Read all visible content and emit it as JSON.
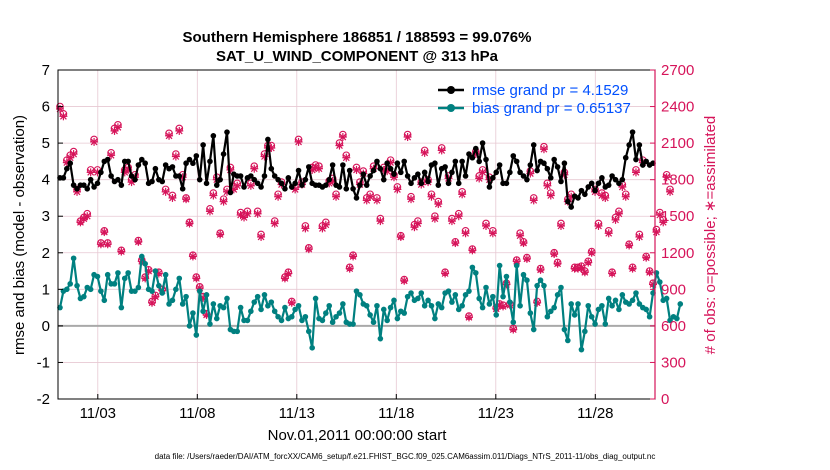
{
  "chart_data": {
    "type": "line",
    "title_line1": "Southern Hemisphere 186851 / 188593 = 99.076%",
    "title_line2": "SAT_U_WIND_COMPONENT @ 313 hPa",
    "xlabel": "Nov.01,2011 00:00:00 start",
    "ylabel_left": "rmse and bias (model - observation)",
    "ylabel_right": "# of obs: o=possible; ∗=assimilated",
    "footer": "data file: /Users/raeder/DAI/ATM_forcXX/CAM6_setup/f.e21.FHIST_BGC.f09_025.CAM6assim.011/Diags_NTrS_2011-11/obs_diag_output.nc",
    "xlim": [
      1.0,
      31.0
    ],
    "x_ticks": [
      3,
      8,
      13,
      18,
      23,
      28
    ],
    "x_tick_labels": [
      "11/03",
      "11/08",
      "11/13",
      "11/18",
      "11/23",
      "11/28"
    ],
    "ylim_left": [
      -2,
      7
    ],
    "y_ticks_left": [
      "-2",
      "-1",
      "0",
      "1",
      "2",
      "3",
      "4",
      "5",
      "6",
      "7"
    ],
    "ylim_right": [
      0,
      2700
    ],
    "y_ticks_right": [
      "0",
      "300",
      "600",
      "900",
      "1200",
      "1500",
      "1800",
      "2100",
      "2400",
      "2700"
    ],
    "zero_line": 0,
    "legend_position": "top-right",
    "colors": {
      "rmse": "#000000",
      "bias": "#008080",
      "obs": "#d6145a",
      "grid": "#e7c8d2",
      "right_axis": "#d6145a"
    },
    "series": [
      {
        "name": "rmse",
        "legend": "rmse grand pr = 4.1529",
        "values": [
          4.05,
          4.05,
          4.3,
          4.45,
          3.85,
          3.75,
          3.85,
          3.85,
          3.75,
          4.0,
          3.8,
          3.9,
          4.2,
          4.5,
          4.55,
          4.1,
          3.95,
          4.0,
          3.85,
          4.5,
          4.5,
          4.1,
          4.0,
          4.4,
          4.55,
          4.45,
          3.9,
          3.95,
          4.3,
          4.0,
          3.95,
          4.4,
          4.3,
          4.35,
          4.1,
          4.1,
          3.75,
          4.45,
          4.55,
          4.45,
          4.65,
          4.0,
          4.95,
          3.9,
          4.5,
          5.2,
          3.85,
          4.0,
          4.7,
          5.3,
          3.65,
          4.15,
          4.1,
          4.1,
          3.8,
          4.05,
          4.1,
          4.0,
          3.9,
          3.8,
          4.1,
          5.1,
          4.3,
          4.1,
          4.0,
          3.9,
          3.75,
          4.05,
          3.8,
          3.9,
          4.25,
          3.85,
          4.0,
          4.35,
          3.9,
          3.85,
          3.85,
          3.8,
          3.85,
          4.0,
          4.4,
          3.85,
          3.8,
          4.4,
          3.75,
          4.25,
          3.75,
          3.5,
          3.85,
          4.15,
          3.85,
          4.1,
          4.25,
          4.5,
          4.3,
          4.0,
          4.45,
          4.3,
          4.15,
          4.45,
          4.2,
          4.5,
          4.1,
          3.9,
          4.05,
          4.15,
          3.9,
          4.2,
          3.95,
          4.4,
          4.45,
          3.85,
          4.3,
          4.35,
          3.9,
          4.2,
          4.5,
          3.9,
          4.5,
          4.1,
          4.7,
          4.6,
          4.85,
          4.5,
          5.0,
          4.55,
          3.8,
          4.05,
          4.2,
          4.4,
          3.9,
          3.9,
          4.2,
          4.65,
          4.5,
          4.2,
          4.1,
          4.0,
          4.4,
          4.95,
          4.25,
          4.5,
          4.45,
          4.3,
          4.05,
          4.55,
          4.35,
          3.95,
          4.45,
          3.4,
          3.25,
          3.55,
          3.5,
          3.7,
          3.6,
          3.8,
          3.9,
          3.7,
          3.9,
          4.05,
          3.8,
          3.85,
          4.1,
          4.0,
          3.9,
          4.0,
          4.6,
          4.95,
          5.3,
          4.55,
          4.95,
          4.4,
          4.5,
          4.4,
          4.45
        ]
      },
      {
        "name": "bias",
        "legend": "bias grand pr = 0.65137",
        "values": [
          0.5,
          0.95,
          1.0,
          1.15,
          1.85,
          1.1,
          0.75,
          0.8,
          1.05,
          1.0,
          1.4,
          1.35,
          0.95,
          0.7,
          1.4,
          1.15,
          1.15,
          1.45,
          0.5,
          1.3,
          1.45,
          0.95,
          0.95,
          1.05,
          1.9,
          1.7,
          1.0,
          0.95,
          1.5,
          1.1,
          0.9,
          1.4,
          0.6,
          0.7,
          1.0,
          1.3,
          0.6,
          0.8,
          0.0,
          0.35,
          -0.25,
          0.95,
          0.4,
          0.85,
          0.05,
          0.6,
          0.2,
          0.55,
          0.5,
          0.75,
          -0.1,
          -0.15,
          -0.15,
          0.5,
          0.15,
          0.15,
          0.4,
          0.65,
          0.8,
          0.45,
          0.85,
          0.55,
          0.65,
          0.4,
          0.25,
          0.15,
          0.5,
          0.2,
          0.25,
          0.45,
          0.55,
          0.15,
          0.25,
          -0.15,
          -0.6,
          0.75,
          0.2,
          0.15,
          0.35,
          0.55,
          0.1,
          0.25,
          0.35,
          0.6,
          0.1,
          0.05,
          0.05,
          0.95,
          0.85,
          0.6,
          0.55,
          0.3,
          0.1,
          0.55,
          -0.35,
          0.45,
          0.15,
          0.5,
          0.7,
          0.2,
          0.4,
          0.35,
          0.8,
          0.9,
          0.7,
          0.75,
          0.9,
          0.55,
          0.7,
          0.55,
          0.2,
          0.6,
          0.5,
          0.9,
          0.95,
          0.65,
          0.85,
          0.45,
          0.55,
          0.85,
          0.95,
          1.6,
          1.45,
          0.75,
          0.5,
          1.05,
          0.6,
          0.8,
          0.3,
          1.65,
          0.8,
          1.35,
          0.65,
          0.1,
          1.65,
          0.55,
          1.4,
          1.25,
          0.35,
          -0.1,
          1.1,
          1.25,
          1.1,
          0.25,
          0.4,
          0.5,
          0.85,
          1.05,
          -0.1,
          -0.4,
          0.6,
          0.3,
          0.6,
          -0.65,
          -0.15,
          0.55,
          0.25,
          0.05,
          0.45,
          0.55,
          0.05,
          0.75,
          0.55,
          0.7,
          0.45,
          0.85,
          0.65,
          0.6,
          0.7,
          0.9,
          0.6,
          0.5,
          0.45,
          0.25,
          0.9,
          1.45,
          1.2,
          0.7,
          0.75,
          0.15,
          0.25,
          0.2,
          0.6
        ]
      },
      {
        "name": "obs_possible",
        "values": [
          2400,
          2340,
          1960,
          2000,
          2030,
          1720,
          1460,
          1490,
          1520,
          1880,
          2130,
          1880,
          1280,
          1380,
          1280,
          2020,
          2220,
          2250,
          1220,
          1880,
          1900,
          1800,
          1840,
          1300,
          1140,
          1000,
          1060,
          800,
          850,
          1040,
          900,
          1720,
          2180,
          1670,
          2010,
          2220,
          1840,
          1650,
          1450,
          1180,
          1000,
          920,
          840,
          700,
          1560,
          1690,
          1820,
          1360,
          1640,
          1720,
          1900,
          1740,
          1770,
          1530,
          1510,
          1540,
          1770,
          1910,
          1540,
          1350,
          2010,
          2080,
          2080,
          1460,
          1680,
          1780,
          1000,
          1040,
          800,
          1740,
          2130,
          1780,
          1420,
          1240,
          1900,
          1920,
          1910,
          1420,
          1450,
          1790,
          1810,
          1680,
          2100,
          2170,
          2000,
          1080,
          1180,
          1900,
          1780,
          1870,
          1650,
          1680,
          1910,
          1650,
          1480,
          1900,
          1890,
          1960,
          1840,
          1740,
          1340,
          980,
          2170,
          1660,
          1430,
          1460,
          1780,
          2040,
          1800,
          1680,
          1500,
          1620,
          2060,
          1040,
          1830,
          1480,
          1290,
          1520,
          1700,
          1380,
          680,
          1230,
          2030,
          1830,
          1880,
          1440,
          1820,
          1380,
          750,
          780,
          770,
          950,
          780,
          580,
          1140,
          1360,
          1290,
          1160,
          1870,
          1650,
          800,
          1070,
          2070,
          1770,
          1690,
          1200,
          1120,
          1440,
          1860,
          1640,
          1680,
          1080,
          1080,
          1090,
          1050,
          1130,
          1210,
          1720,
          1440,
          1690,
          1670,
          1380,
          1040,
          1490,
          1540,
          1760,
          1680,
          1270,
          1080,
          1880,
          1350,
          1960,
          1170,
          1050,
          950,
          1390,
          1530,
          1470,
          1840,
          1720
        ]
      },
      {
        "name": "obs_assimilated",
        "values": [
          2380,
          2320,
          1940,
          1980,
          2010,
          1700,
          1450,
          1480,
          1500,
          1860,
          2110,
          1860,
          1270,
          1370,
          1270,
          2000,
          2200,
          2230,
          1210,
          1860,
          1880,
          1780,
          1820,
          1290,
          1130,
          990,
          1050,
          790,
          840,
          1030,
          890,
          1700,
          2160,
          1650,
          1990,
          2200,
          1820,
          1640,
          1440,
          1170,
          990,
          910,
          830,
          690,
          1540,
          1670,
          1800,
          1350,
          1620,
          1700,
          1880,
          1720,
          1750,
          1510,
          1490,
          1520,
          1750,
          1890,
          1520,
          1330,
          1990,
          2060,
          2060,
          1440,
          1660,
          1760,
          990,
          1030,
          790,
          1720,
          2110,
          1760,
          1400,
          1230,
          1880,
          1900,
          1890,
          1400,
          1430,
          1770,
          1790,
          1660,
          2080,
          2150,
          1980,
          1070,
          1170,
          1880,
          1760,
          1850,
          1630,
          1660,
          1890,
          1630,
          1460,
          1880,
          1870,
          1940,
          1820,
          1720,
          1330,
          970,
          2150,
          1640,
          1410,
          1440,
          1760,
          2020,
          1780,
          1660,
          1480,
          1600,
          2040,
          1030,
          1810,
          1460,
          1280,
          1500,
          1680,
          1360,
          670,
          1220,
          2010,
          1810,
          1860,
          1420,
          1800,
          1360,
          740,
          770,
          760,
          940,
          770,
          570,
          1130,
          1340,
          1280,
          1150,
          1850,
          1630,
          790,
          1060,
          2050,
          1750,
          1670,
          1190,
          1110,
          1420,
          1840,
          1620,
          1660,
          1070,
          1070,
          1080,
          1040,
          1120,
          1200,
          1700,
          1420,
          1670,
          1650,
          1360,
          1030,
          1470,
          1520,
          1740,
          1660,
          1260,
          1070,
          1860,
          1330,
          1940,
          1160,
          1040,
          940,
          1370,
          1510,
          1450,
          1820,
          1700
        ]
      }
    ]
  }
}
